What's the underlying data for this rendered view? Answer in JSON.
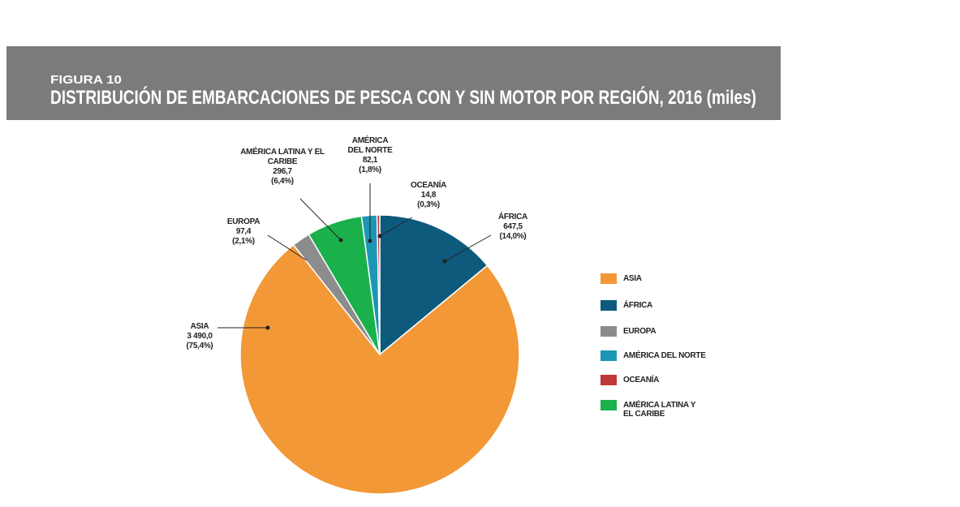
{
  "chart_data": {
    "type": "pie",
    "figure_label": "FIGURA 10",
    "title": "DISTRIBUCIÓN DE EMBARCACIONES DE PESCA CON Y SIN MOTOR POR REGIÓN, 2016 (miles)",
    "categories": [
      "ASIA",
      "ÁFRICA",
      "EUROPA",
      "AMÉRICA DEL NORTE",
      "OCEANÍA",
      "AMÉRICA LATINA Y EL CARIBE"
    ],
    "values": [
      3490.0,
      647.5,
      97.4,
      82.1,
      14.8,
      296.7
    ],
    "value_labels": [
      "3 490,0",
      "647,5",
      "97,4",
      "82,1",
      "14,8",
      "296,7"
    ],
    "percentage_labels": [
      "(75,4%)",
      "(14,0%)",
      "(2,1%)",
      "(1,8%)",
      "(0,3%)",
      "(6,4%)"
    ],
    "colors": [
      "#f29837",
      "#0e5a7c",
      "#8c8c8c",
      "#1b97b5",
      "#c0373a",
      "#1ab04c"
    ],
    "legend": "right"
  }
}
